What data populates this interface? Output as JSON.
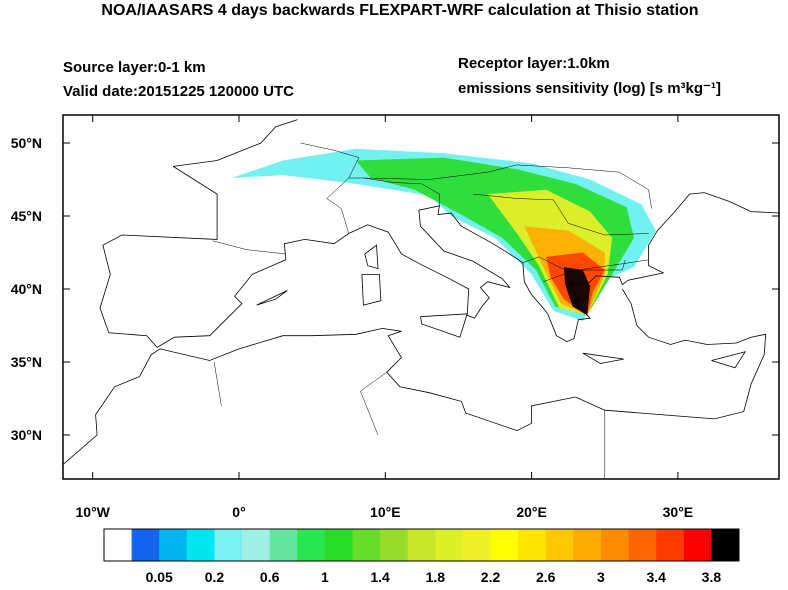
{
  "header": {
    "title": "NOA/IAASARS 4 days backwards FLEXPART-WRF calculation at Thisio station",
    "source_layer": "Source layer:0-1 km",
    "valid_date": "Valid date:20151225 120000 UTC",
    "receptor_layer": "Receptor layer:1.0km",
    "units": "emissions sensitivity (log) [s m³kg⁻¹]"
  },
  "map": {
    "lat_ticks": [
      {
        "value": 50,
        "label": "50°N"
      },
      {
        "value": 45,
        "label": "45°N"
      },
      {
        "value": 40,
        "label": "40°N"
      },
      {
        "value": 35,
        "label": "35°N"
      },
      {
        "value": 30,
        "label": "30°N"
      }
    ],
    "lon_ticks": [
      {
        "value": -10,
        "label": "10°W"
      },
      {
        "value": 0,
        "label": "0°"
      },
      {
        "value": 10,
        "label": "10°E"
      },
      {
        "value": 20,
        "label": "20°E"
      },
      {
        "value": 30,
        "label": "30°E"
      }
    ]
  },
  "colorbar": {
    "colors": [
      "#ffffff",
      "#1464f0",
      "#00b4f0",
      "#00e6f0",
      "#78f0f0",
      "#a0f0e6",
      "#64e6a0",
      "#28e650",
      "#28dc28",
      "#64dc28",
      "#96dc28",
      "#c8e628",
      "#dcf028",
      "#f0f028",
      "#ffff00",
      "#ffe600",
      "#ffc800",
      "#ffaa00",
      "#ff8c00",
      "#ff6400",
      "#ff3c00",
      "#ff0000",
      "#000000"
    ],
    "labels": [
      0.05,
      0.2,
      0.6,
      1,
      1.4,
      1.8,
      2.2,
      2.6,
      3,
      3.4,
      3.8
    ]
  }
}
